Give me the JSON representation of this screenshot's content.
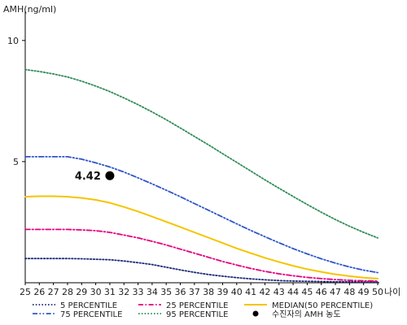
{
  "chart_data": {
    "type": "line",
    "ylabel": "AMH(ng/ml)",
    "xlabel": "나이",
    "x": [
      25,
      26,
      27,
      28,
      29,
      30,
      31,
      32,
      33,
      34,
      35,
      36,
      37,
      38,
      39,
      40,
      41,
      42,
      43,
      44,
      45,
      46,
      47,
      48,
      49,
      50
    ],
    "yticks": [
      5,
      10
    ],
    "xlim": [
      25,
      50
    ],
    "ylim": [
      0,
      11
    ],
    "grid": false,
    "legend_position": "bottom",
    "series": [
      {
        "name": "5 PERCENTILE",
        "color": "#1f2a7a",
        "dash": "dotted",
        "values": [
          1.0,
          1.0,
          1.0,
          1.0,
          0.99,
          0.97,
          0.95,
          0.9,
          0.83,
          0.75,
          0.64,
          0.53,
          0.43,
          0.34,
          0.27,
          0.21,
          0.16,
          0.12,
          0.09,
          0.07,
          0.06,
          0.05,
          0.04,
          0.04,
          0.03,
          0.03
        ]
      },
      {
        "name": "25 PERCENTILE",
        "color": "#e6007e",
        "dash": "dashdot",
        "values": [
          2.2,
          2.2,
          2.2,
          2.2,
          2.18,
          2.15,
          2.08,
          1.97,
          1.85,
          1.71,
          1.56,
          1.39,
          1.22,
          1.05,
          0.88,
          0.73,
          0.59,
          0.47,
          0.37,
          0.29,
          0.22,
          0.17,
          0.13,
          0.1,
          0.08,
          0.07
        ]
      },
      {
        "name": "MEDIAN(50 PERCENTILE)",
        "color": "#f5c400",
        "dash": "solid",
        "values": [
          3.55,
          3.57,
          3.57,
          3.55,
          3.5,
          3.42,
          3.3,
          3.13,
          2.94,
          2.73,
          2.52,
          2.3,
          2.08,
          1.86,
          1.64,
          1.42,
          1.22,
          1.03,
          0.86,
          0.7,
          0.56,
          0.45,
          0.35,
          0.27,
          0.21,
          0.17
        ]
      },
      {
        "name": "75 PERCENTILE",
        "color": "#2e55c8",
        "dash": "dashdotdot",
        "values": [
          5.2,
          5.2,
          5.2,
          5.2,
          5.1,
          4.95,
          4.78,
          4.57,
          4.33,
          4.08,
          3.82,
          3.55,
          3.27,
          2.99,
          2.71,
          2.43,
          2.16,
          1.9,
          1.65,
          1.41,
          1.19,
          0.99,
          0.81,
          0.65,
          0.52,
          0.42
        ]
      },
      {
        "name": "95 PERCENTILE",
        "color": "#2e8b57",
        "dash": "dotted",
        "values": [
          8.8,
          8.72,
          8.62,
          8.49,
          8.32,
          8.12,
          7.89,
          7.63,
          7.35,
          7.05,
          6.73,
          6.39,
          6.04,
          5.69,
          5.33,
          4.97,
          4.61,
          4.25,
          3.9,
          3.56,
          3.23,
          2.91,
          2.61,
          2.33,
          2.08,
          1.85
        ]
      }
    ],
    "highlight_point": {
      "name": "수진자의 AMH 농도",
      "x": 31,
      "y": 4.42,
      "label": "4.42",
      "color": "#000000"
    },
    "legend": {
      "items": [
        {
          "series": "5 PERCENTILE",
          "label": "5 PERCENTILE"
        },
        {
          "series": "25 PERCENTILE",
          "label": "25 PERCENTILE"
        },
        {
          "series": "MEDIAN(50 PERCENTILE)",
          "label": "MEDIAN(50 PERCENTILE)"
        },
        {
          "series": "75 PERCENTILE",
          "label": "75 PERCENTILE"
        },
        {
          "series": "95 PERCENTILE",
          "label": "95 PERCENTILE"
        },
        {
          "marker": "point",
          "label": "수진자의 AMH 농도"
        }
      ]
    }
  }
}
